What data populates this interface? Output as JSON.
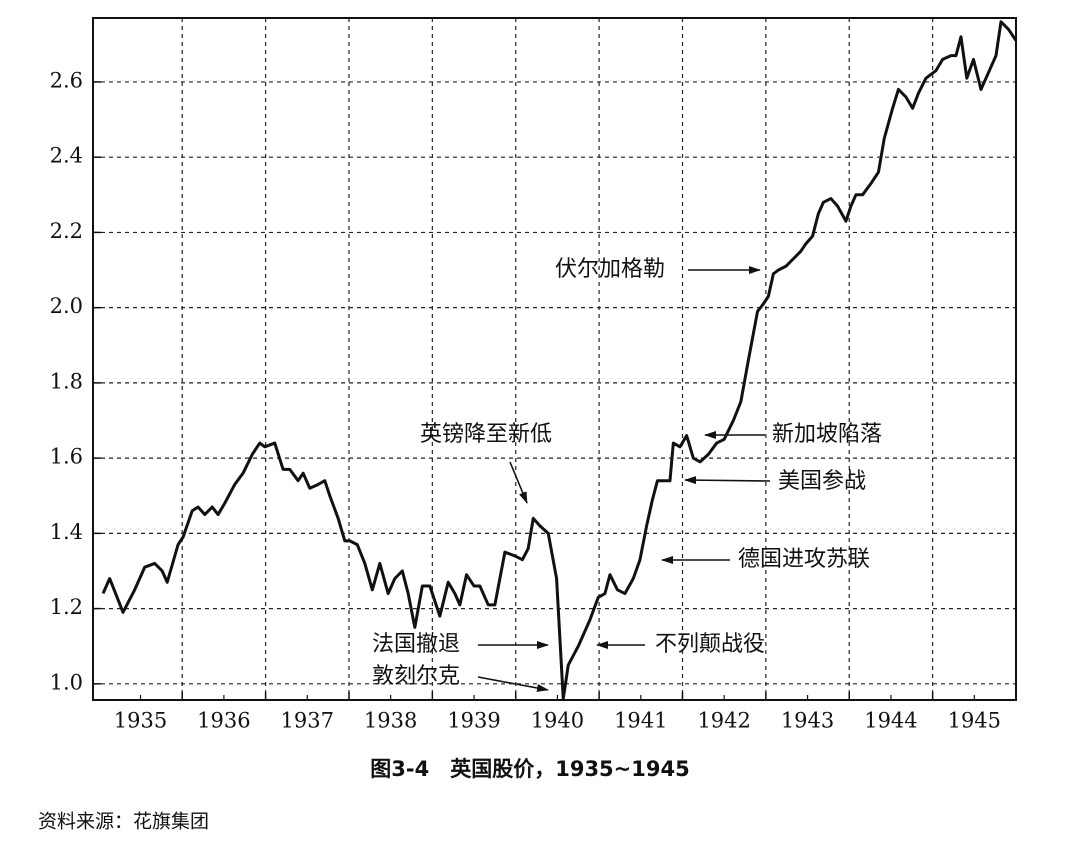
{
  "chart_data": {
    "type": "line",
    "title": "图3-4　英国股价，1935~1945",
    "source": "资料来源：花旗集团",
    "color": "#111111",
    "grid": true,
    "xlim": [
      1934.93,
      1946.0
    ],
    "ylim": [
      0.957,
      2.77
    ],
    "xticks": [
      {
        "value": 1935.5,
        "label": "1935"
      },
      {
        "value": 1936.5,
        "label": "1936"
      },
      {
        "value": 1937.5,
        "label": "1937"
      },
      {
        "value": 1938.5,
        "label": "1938"
      },
      {
        "value": 1939.5,
        "label": "1939"
      },
      {
        "value": 1940.5,
        "label": "1940"
      },
      {
        "value": 1941.5,
        "label": "1941"
      },
      {
        "value": 1942.5,
        "label": "1942"
      },
      {
        "value": 1943.5,
        "label": "1943"
      },
      {
        "value": 1944.5,
        "label": "1944"
      },
      {
        "value": 1945.5,
        "label": "1945"
      }
    ],
    "xgrid": [
      1936,
      1937,
      1938,
      1939,
      1940,
      1941,
      1942,
      1943,
      1944,
      1945
    ],
    "yticks": [
      {
        "value": 1.0,
        "label": "1.0"
      },
      {
        "value": 1.2,
        "label": "1.2"
      },
      {
        "value": 1.4,
        "label": "1.4"
      },
      {
        "value": 1.6,
        "label": "1.6"
      },
      {
        "value": 1.8,
        "label": "1.8"
      },
      {
        "value": 2.0,
        "label": "2.0"
      },
      {
        "value": 2.2,
        "label": "2.2"
      },
      {
        "value": 2.4,
        "label": "2.4"
      },
      {
        "value": 2.6,
        "label": "2.6"
      }
    ],
    "x": [
      1935.05,
      1935.13,
      1935.29,
      1935.43,
      1935.55,
      1935.67,
      1935.76,
      1935.82,
      1935.95,
      1936.01,
      1936.12,
      1936.19,
      1936.27,
      1936.36,
      1936.43,
      1936.51,
      1936.63,
      1936.73,
      1936.84,
      1936.93,
      1936.99,
      1937.11,
      1937.21,
      1937.29,
      1937.39,
      1937.45,
      1937.53,
      1937.63,
      1937.71,
      1937.77,
      1937.87,
      1937.95,
      1938.01,
      1938.1,
      1938.19,
      1938.28,
      1938.37,
      1938.47,
      1938.55,
      1938.64,
      1938.71,
      1938.79,
      1938.88,
      1938.97,
      1939.09,
      1939.19,
      1939.27,
      1939.33,
      1939.41,
      1939.5,
      1939.57,
      1939.67,
      1939.75,
      1939.87,
      1939.99,
      1940.08,
      1940.15,
      1940.21,
      1940.29,
      1940.39,
      1940.49,
      1940.57,
      1940.63,
      1940.75,
      1940.89,
      1940.99,
      1941.07,
      1941.13,
      1941.22,
      1941.31,
      1941.41,
      1941.49,
      1941.57,
      1941.64,
      1941.7,
      1941.79,
      1941.85,
      1941.89,
      1941.97,
      1942.05,
      1942.13,
      1942.21,
      1942.31,
      1942.41,
      1942.5,
      1942.61,
      1942.7,
      1942.79,
      1942.9,
      1942.97,
      1943.03,
      1943.09,
      1943.15,
      1943.24,
      1943.33,
      1943.42,
      1943.48,
      1943.56,
      1943.63,
      1943.69,
      1943.78,
      1943.86,
      1943.96,
      1944.02,
      1944.08,
      1944.16,
      1944.26,
      1944.35,
      1944.42,
      1944.52,
      1944.59,
      1944.68,
      1944.76,
      1944.83,
      1944.92,
      1945.04,
      1945.12,
      1945.22,
      1945.28,
      1945.34,
      1945.41,
      1945.49,
      1945.58,
      1945.66,
      1945.76,
      1945.82,
      1945.91,
      1946.0
    ],
    "values": [
      1.24,
      1.28,
      1.19,
      1.25,
      1.31,
      1.32,
      1.3,
      1.27,
      1.37,
      1.39,
      1.46,
      1.47,
      1.45,
      1.47,
      1.45,
      1.48,
      1.53,
      1.56,
      1.61,
      1.64,
      1.63,
      1.64,
      1.57,
      1.57,
      1.54,
      1.56,
      1.52,
      1.53,
      1.54,
      1.5,
      1.44,
      1.38,
      1.38,
      1.37,
      1.32,
      1.25,
      1.32,
      1.24,
      1.28,
      1.3,
      1.24,
      1.15,
      1.26,
      1.26,
      1.18,
      1.27,
      1.24,
      1.21,
      1.29,
      1.26,
      1.26,
      1.21,
      1.21,
      1.35,
      1.34,
      1.33,
      1.36,
      1.44,
      1.42,
      1.4,
      1.28,
      0.96,
      1.05,
      1.1,
      1.17,
      1.23,
      1.24,
      1.29,
      1.25,
      1.24,
      1.28,
      1.33,
      1.42,
      1.49,
      1.54,
      1.54,
      1.54,
      1.64,
      1.63,
      1.66,
      1.6,
      1.59,
      1.61,
      1.64,
      1.65,
      1.7,
      1.75,
      1.86,
      1.99,
      2.01,
      2.03,
      2.09,
      2.1,
      2.11,
      2.13,
      2.15,
      2.17,
      2.19,
      2.25,
      2.28,
      2.29,
      2.27,
      2.23,
      2.27,
      2.3,
      2.3,
      2.33,
      2.36,
      2.45,
      2.53,
      2.58,
      2.56,
      2.53,
      2.57,
      2.61,
      2.63,
      2.66,
      2.67,
      2.67,
      2.72,
      2.61,
      2.66,
      2.58,
      2.62,
      2.67,
      2.76,
      2.74,
      2.71
    ],
    "annotations": [
      "伏尔加格勒",
      "英镑降至新低",
      "新加坡陷落",
      "美国参战",
      "德国进攻苏联",
      "法国撤退",
      "敦刻尔克",
      "不列颠战役"
    ]
  }
}
